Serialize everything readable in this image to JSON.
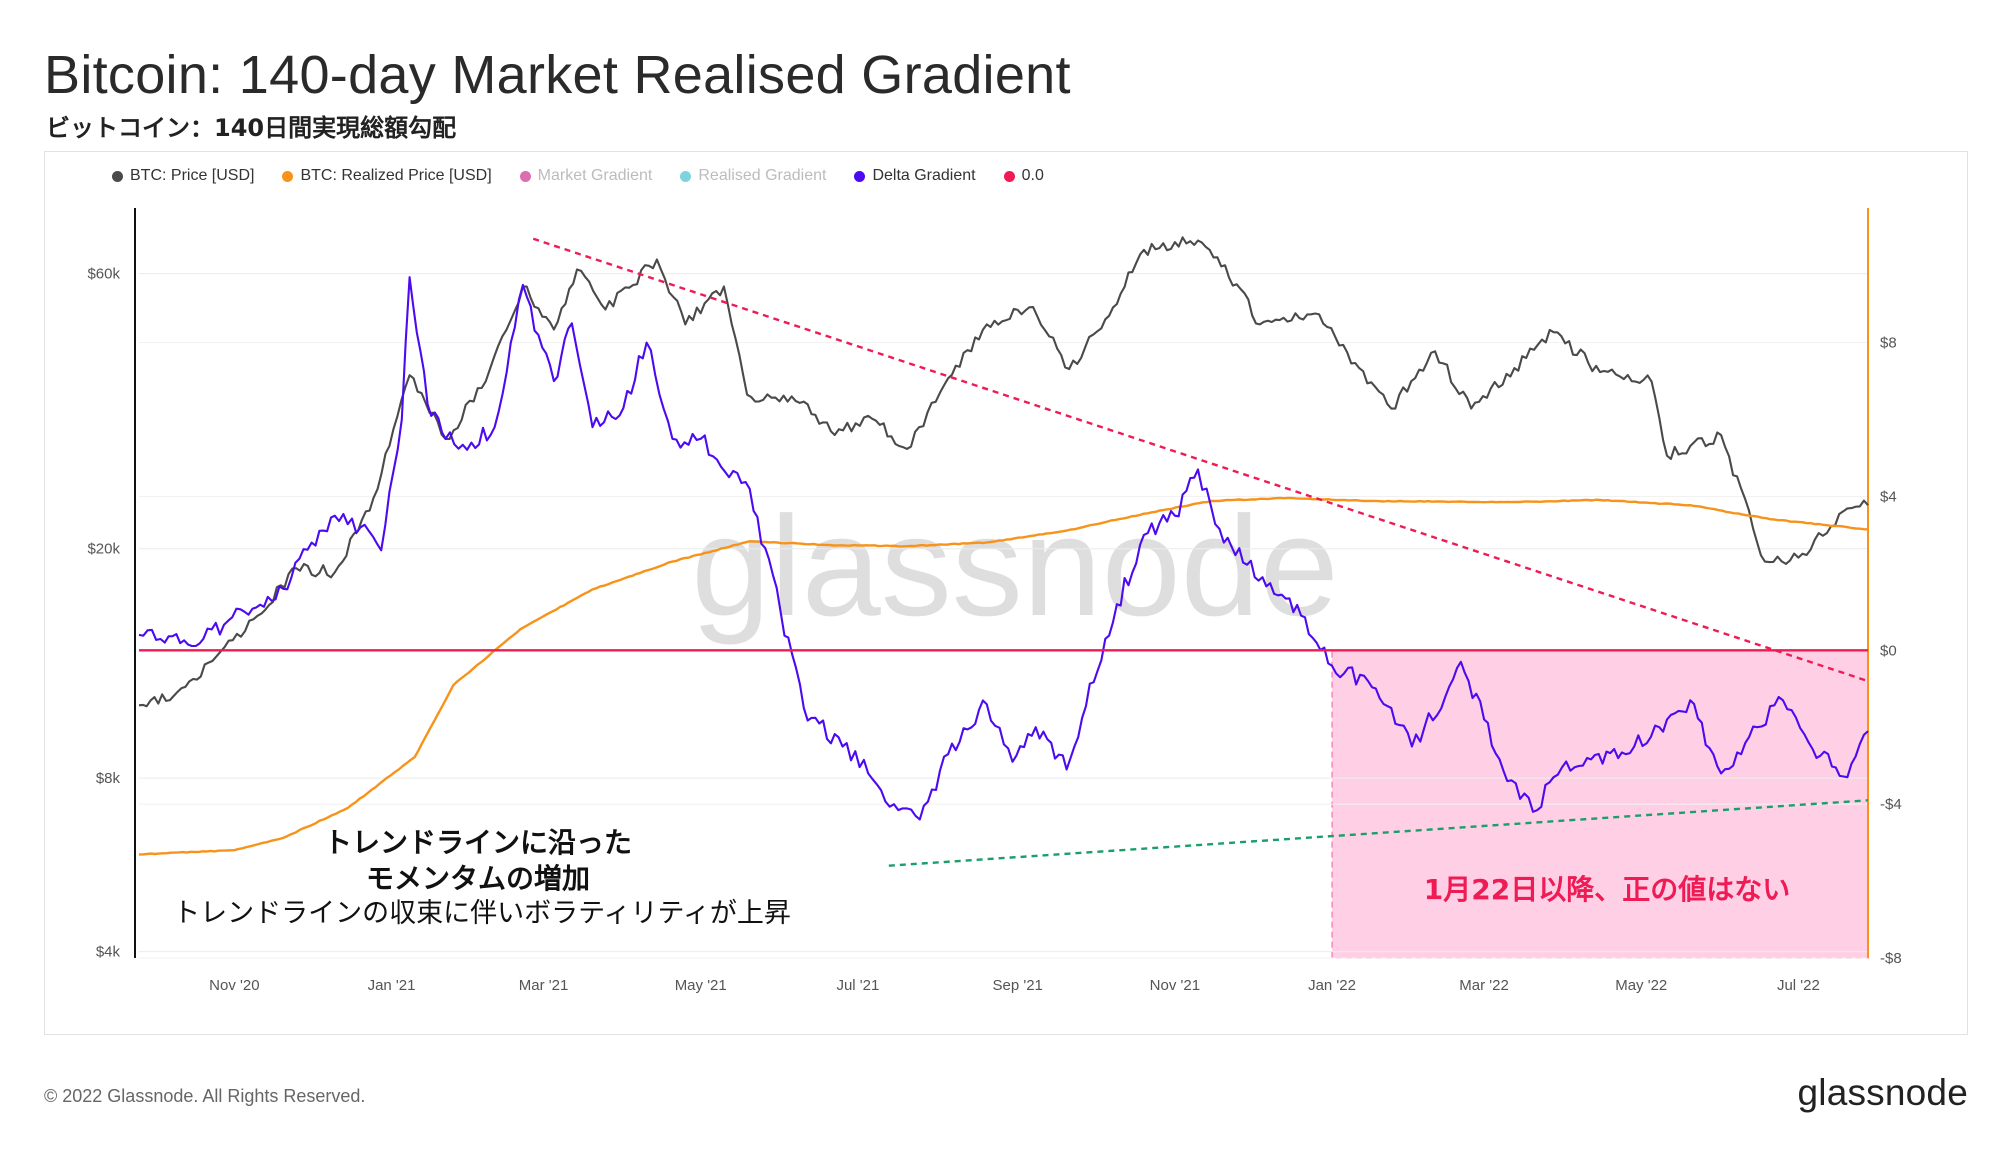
{
  "title": "Bitcoin: 140-day Market Realised Gradient",
  "subtitle": "ビットコイン：140日間実現総額勾配",
  "footer": "© 2022 Glassnode. All Rights Reserved.",
  "brand": "glassnode",
  "watermark": "glassnode",
  "legend": [
    {
      "label": "BTC: Price [USD]",
      "color": "#4a4a4a",
      "dim": false
    },
    {
      "label": "BTC: Realized Price [USD]",
      "color": "#f7931a",
      "dim": false
    },
    {
      "label": "Market Gradient",
      "color": "#d96fae",
      "dim": true
    },
    {
      "label": "Realised Gradient",
      "color": "#7fd3df",
      "dim": true
    },
    {
      "label": "Delta Gradient",
      "color": "#4b0af0",
      "dim": false
    },
    {
      "label": "0.0",
      "color": "#ee1b55",
      "dim": false
    }
  ],
  "annotations": {
    "left_line1": "トレンドラインに沿った",
    "left_line2": "モメンタムの増加",
    "left_line3": "トレンドラインの収束に伴いボラティリティが上昇",
    "pink_box": "1月22日以降、正の値はない"
  },
  "chart_data": {
    "type": "line",
    "x_range": [
      "2020-09-25",
      "2022-07-28"
    ],
    "x_ticks": [
      "Nov '20",
      "Jan '21",
      "Mar '21",
      "May '21",
      "Jul '21",
      "Sep '21",
      "Nov '21",
      "Jan '22",
      "Mar '22",
      "May '22",
      "Jul '22"
    ],
    "y_left": {
      "scale": "log",
      "range": [
        3900,
        78000
      ],
      "ticks": [
        {
          "v": 4000,
          "label": "$4k"
        },
        {
          "v": 8000,
          "label": "$8k"
        },
        {
          "v": 20000,
          "label": "$20k"
        },
        {
          "v": 60000,
          "label": "$60k"
        }
      ]
    },
    "y_right": {
      "scale": "linear",
      "range": [
        -8,
        11.5
      ],
      "ticks": [
        {
          "v": 8,
          "label": "$8"
        },
        {
          "v": 4,
          "label": "$4"
        },
        {
          "v": 0,
          "label": "$0"
        },
        {
          "v": -4,
          "label": "-$4"
        },
        {
          "v": -8,
          "label": "-$8"
        }
      ]
    },
    "series": [
      {
        "name": "BTC: Price [USD]",
        "color": "#4a4a4a",
        "axis": "left",
        "points": [
          [
            "2020-09-25",
            10700
          ],
          [
            "2020-10-10",
            11300
          ],
          [
            "2020-10-25",
            13000
          ],
          [
            "2020-11-10",
            15300
          ],
          [
            "2020-11-25",
            18500
          ],
          [
            "2020-12-10",
            18200
          ],
          [
            "2020-12-25",
            24500
          ],
          [
            "2021-01-08",
            40000
          ],
          [
            "2021-01-22",
            31000
          ],
          [
            "2021-02-05",
            38000
          ],
          [
            "2021-02-21",
            57000
          ],
          [
            "2021-03-05",
            48000
          ],
          [
            "2021-03-14",
            61000
          ],
          [
            "2021-03-25",
            52000
          ],
          [
            "2021-04-14",
            63500
          ],
          [
            "2021-04-25",
            49000
          ],
          [
            "2021-05-10",
            57000
          ],
          [
            "2021-05-19",
            37000
          ],
          [
            "2021-06-10",
            36000
          ],
          [
            "2021-06-22",
            31500
          ],
          [
            "2021-07-05",
            34000
          ],
          [
            "2021-07-20",
            29800
          ],
          [
            "2021-08-05",
            39500
          ],
          [
            "2021-08-20",
            49000
          ],
          [
            "2021-09-07",
            52500
          ],
          [
            "2021-09-21",
            41000
          ],
          [
            "2021-10-05",
            50000
          ],
          [
            "2021-10-20",
            66000
          ],
          [
            "2021-11-10",
            68500
          ],
          [
            "2021-11-25",
            57500
          ],
          [
            "2021-12-04",
            49000
          ],
          [
            "2021-12-27",
            51000
          ],
          [
            "2022-01-10",
            42000
          ],
          [
            "2022-01-24",
            35000
          ],
          [
            "2022-02-10",
            44000
          ],
          [
            "2022-02-24",
            35000
          ],
          [
            "2022-03-28",
            47500
          ],
          [
            "2022-04-15",
            40500
          ],
          [
            "2022-05-05",
            39000
          ],
          [
            "2022-05-11",
            29000
          ],
          [
            "2022-06-01",
            31500
          ],
          [
            "2022-06-18",
            19000
          ],
          [
            "2022-07-01",
            19300
          ],
          [
            "2022-07-20",
            23500
          ],
          [
            "2022-07-28",
            23800
          ]
        ]
      },
      {
        "name": "BTC: Realized Price [USD]",
        "color": "#f7931a",
        "axis": "left",
        "points": [
          [
            "2020-09-25",
            5900
          ],
          [
            "2020-11-01",
            6000
          ],
          [
            "2020-11-20",
            6300
          ],
          [
            "2020-12-15",
            7100
          ],
          [
            "2021-01-10",
            8700
          ],
          [
            "2021-01-25",
            11600
          ],
          [
            "2021-02-20",
            14500
          ],
          [
            "2021-03-20",
            17000
          ],
          [
            "2021-04-20",
            19000
          ],
          [
            "2021-05-20",
            20600
          ],
          [
            "2021-06-20",
            20300
          ],
          [
            "2021-07-20",
            20200
          ],
          [
            "2021-08-20",
            20500
          ],
          [
            "2021-09-20",
            21500
          ],
          [
            "2021-10-20",
            23000
          ],
          [
            "2021-11-15",
            24200
          ],
          [
            "2021-12-15",
            24500
          ],
          [
            "2022-01-15",
            24200
          ],
          [
            "2022-03-15",
            24100
          ],
          [
            "2022-04-15",
            24300
          ],
          [
            "2022-05-20",
            23800
          ],
          [
            "2022-06-20",
            22500
          ],
          [
            "2022-07-28",
            21600
          ]
        ]
      },
      {
        "name": "Delta Gradient",
        "color": "#4b0af0",
        "axis": "right",
        "points": [
          [
            "2020-09-25",
            0.4
          ],
          [
            "2020-10-05",
            0.2
          ],
          [
            "2020-10-20",
            0.3
          ],
          [
            "2020-11-05",
            1.0
          ],
          [
            "2020-11-20",
            1.6
          ],
          [
            "2020-12-01",
            2.8
          ],
          [
            "2020-12-10",
            3.5
          ],
          [
            "2020-12-20",
            3.2
          ],
          [
            "2020-12-28",
            2.6
          ],
          [
            "2021-01-05",
            6.0
          ],
          [
            "2021-01-08",
            9.7
          ],
          [
            "2021-01-15",
            6.4
          ],
          [
            "2021-01-22",
            5.5
          ],
          [
            "2021-02-01",
            5.4
          ],
          [
            "2021-02-10",
            5.8
          ],
          [
            "2021-02-21",
            9.5
          ],
          [
            "2021-02-27",
            8.2
          ],
          [
            "2021-03-05",
            7.0
          ],
          [
            "2021-03-12",
            8.5
          ],
          [
            "2021-03-20",
            5.8
          ],
          [
            "2021-04-01",
            6.3
          ],
          [
            "2021-04-10",
            8.0
          ],
          [
            "2021-04-20",
            5.5
          ],
          [
            "2021-05-01",
            5.5
          ],
          [
            "2021-05-12",
            4.5
          ],
          [
            "2021-05-20",
            4.2
          ],
          [
            "2021-06-01",
            1.0
          ],
          [
            "2021-06-10",
            -1.5
          ],
          [
            "2021-06-25",
            -2.5
          ],
          [
            "2021-07-05",
            -3.2
          ],
          [
            "2021-07-15",
            -4.0
          ],
          [
            "2021-07-25",
            -4.4
          ],
          [
            "2021-08-05",
            -2.7
          ],
          [
            "2021-08-20",
            -1.4
          ],
          [
            "2021-08-30",
            -2.9
          ],
          [
            "2021-09-08",
            -2.0
          ],
          [
            "2021-09-20",
            -3.1
          ],
          [
            "2021-10-05",
            0.3
          ],
          [
            "2021-10-20",
            3.0
          ],
          [
            "2021-11-01",
            3.5
          ],
          [
            "2021-11-10",
            4.7
          ],
          [
            "2021-11-20",
            2.8
          ],
          [
            "2021-12-05",
            1.9
          ],
          [
            "2021-12-20",
            0.9
          ],
          [
            "2022-01-01",
            -0.4
          ],
          [
            "2022-01-15",
            -0.8
          ],
          [
            "2022-01-24",
            -1.5
          ],
          [
            "2022-02-01",
            -2.5
          ],
          [
            "2022-02-14",
            -1.2
          ],
          [
            "2022-02-20",
            -0.3
          ],
          [
            "2022-03-01",
            -1.8
          ],
          [
            "2022-03-10",
            -3.4
          ],
          [
            "2022-03-20",
            -4.2
          ],
          [
            "2022-03-28",
            -3.3
          ],
          [
            "2022-04-10",
            -2.8
          ],
          [
            "2022-04-25",
            -2.7
          ],
          [
            "2022-05-08",
            -2.0
          ],
          [
            "2022-05-20",
            -1.3
          ],
          [
            "2022-06-01",
            -3.2
          ],
          [
            "2022-06-15",
            -2.0
          ],
          [
            "2022-06-25",
            -1.3
          ],
          [
            "2022-07-05",
            -2.4
          ],
          [
            "2022-07-20",
            -3.3
          ],
          [
            "2022-07-28",
            -2.1
          ]
        ]
      },
      {
        "name": "0.0",
        "color": "#ee1b55",
        "axis": "right",
        "constant": 0
      }
    ],
    "trendlines": [
      {
        "color": "#ee1b55",
        "style": "dashed",
        "axis": "right",
        "from": [
          "2021-02-25",
          10.7
        ],
        "to": [
          "2022-07-28",
          -0.8
        ]
      },
      {
        "color": "#1a9e6a",
        "style": "dashed",
        "axis": "right",
        "from": [
          "2021-07-13",
          -5.6
        ],
        "to": [
          "2022-07-28",
          -3.9
        ]
      }
    ],
    "highlight": {
      "from": "2022-01-01",
      "to": "2022-07-28",
      "y_from": -8,
      "y_to": 0,
      "color": "#ff8fc0"
    },
    "grid": true,
    "legend_position": "top-left"
  }
}
